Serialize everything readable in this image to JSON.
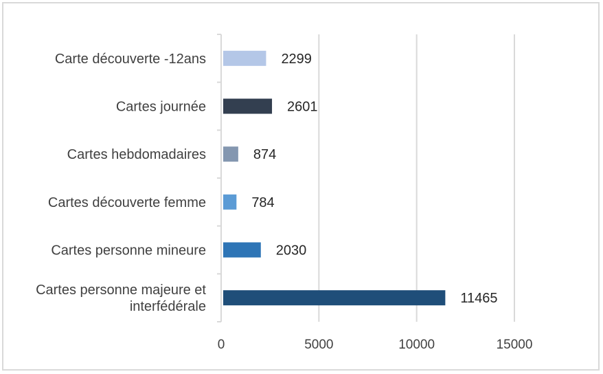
{
  "chart_data": {
    "type": "bar",
    "orientation": "horizontal",
    "categories": [
      [
        "Carte découverte -12ans"
      ],
      [
        "Cartes journée"
      ],
      [
        "Cartes hebdomadaires"
      ],
      [
        "Cartes découverte femme"
      ],
      [
        "Cartes personne mineure"
      ],
      [
        "Cartes personne majeure et",
        "interfédérale"
      ]
    ],
    "values": [
      2299,
      2601,
      874,
      784,
      2030,
      11465
    ],
    "colors": [
      "#b4c7e7",
      "#333f50",
      "#8497b0",
      "#5b9bd5",
      "#2e75b6",
      "#1f4e79"
    ],
    "xlim": [
      0,
      15000
    ],
    "xticks": [
      "0",
      "5000",
      "10000",
      "15000"
    ],
    "title": "",
    "xlabel": "",
    "ylabel": "",
    "grid": "vertical",
    "legend": "none"
  }
}
